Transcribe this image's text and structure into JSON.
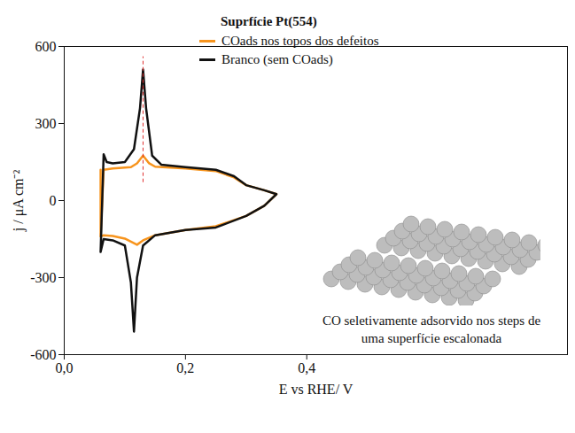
{
  "chart_data": {
    "type": "line",
    "title": "Suprfície Pt(554)",
    "x_label": "E vs RHE/ V",
    "y_label": "j / μA cm⁻²",
    "annotation": "CO seletivamente adsorvido nos steps de uma superfície escalonada",
    "xlim": [
      0,
      0.83
    ],
    "xticks": [
      {
        "value": 0,
        "label": "0,0"
      },
      {
        "value": 0.2,
        "label": "0,2"
      },
      {
        "value": 0.4,
        "label": "0,4"
      }
    ],
    "ylim": [
      -600,
      600
    ],
    "yticks": [
      600,
      300,
      0,
      -300,
      -600
    ],
    "legend": "top",
    "reference_line": {
      "x": 0.13,
      "y": [
        70,
        560
      ],
      "color": "#e03030",
      "line_style": "dashed"
    },
    "series": [
      {
        "name": "COads nos topos dos defeitos",
        "color": "#f7941d",
        "x": [
          0.06,
          0.065,
          0.08,
          0.11,
          0.12,
          0.13,
          0.14,
          0.15,
          0.2,
          0.25,
          0.28,
          0.3,
          0.33,
          0.35,
          0.33,
          0.3,
          0.25,
          0.2,
          0.15,
          0.13,
          0.12,
          0.11,
          0.1,
          0.08,
          0.065,
          0.06,
          0.06
        ],
        "values": [
          -140,
          120,
          125,
          130,
          145,
          175,
          145,
          132,
          125,
          115,
          90,
          60,
          40,
          25,
          -20,
          -60,
          -100,
          -115,
          -135,
          -155,
          -172,
          -160,
          -148,
          -138,
          -135,
          -140,
          120
        ]
      },
      {
        "name": "Branco (sem COads)",
        "color": "#111111",
        "x": [
          0.06,
          0.065,
          0.07,
          0.08,
          0.1,
          0.115,
          0.125,
          0.13,
          0.135,
          0.145,
          0.16,
          0.2,
          0.25,
          0.28,
          0.3,
          0.33,
          0.35,
          0.33,
          0.3,
          0.25,
          0.2,
          0.15,
          0.13,
          0.12,
          0.115,
          0.11,
          0.1,
          0.08,
          0.065,
          0.06
        ],
        "values": [
          -200,
          180,
          150,
          145,
          150,
          200,
          360,
          510,
          360,
          175,
          140,
          130,
          120,
          95,
          60,
          40,
          25,
          -20,
          -60,
          -105,
          -115,
          -135,
          -175,
          -300,
          -510,
          -320,
          -175,
          -155,
          -150,
          -200
        ]
      }
    ]
  }
}
